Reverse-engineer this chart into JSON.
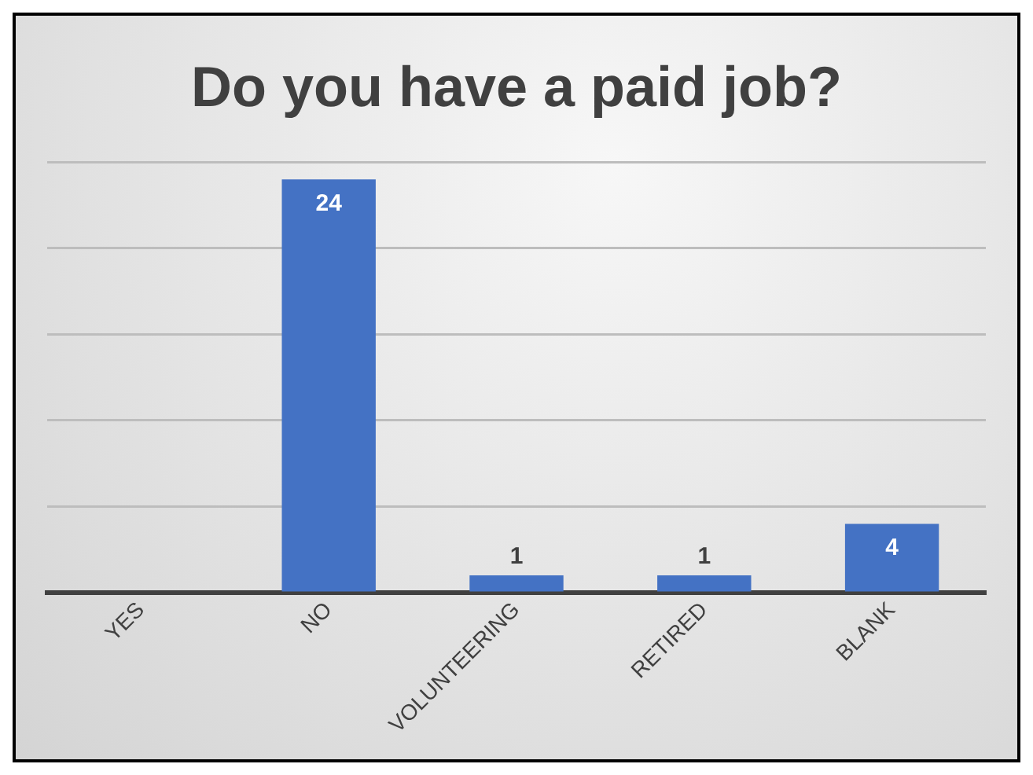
{
  "chart_data": {
    "type": "bar",
    "title": "Do you have a paid job?",
    "categories": [
      "YES",
      "NO",
      "VOLUNTEERING",
      "RETIRED",
      "BLANK"
    ],
    "values": [
      0,
      24,
      1,
      1,
      4
    ],
    "value_labels": [
      null,
      "24",
      "1",
      "1",
      "4"
    ],
    "color": "#4472c4",
    "grid": "y",
    "tick_labels": "x"
  }
}
